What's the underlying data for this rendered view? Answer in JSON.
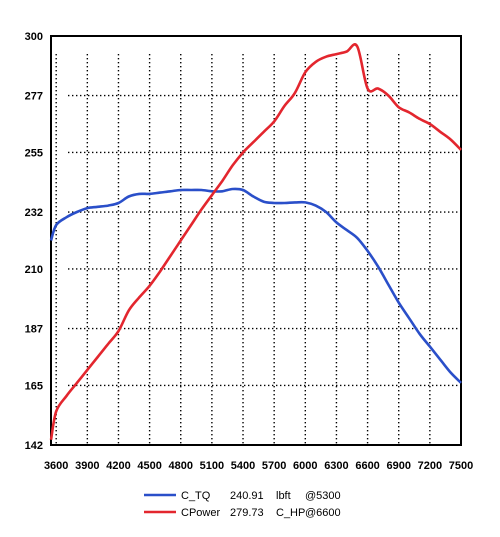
{
  "chart_data": {
    "type": "line",
    "title": "",
    "xlabel": "",
    "ylabel": "",
    "xlim": [
      3550,
      7500
    ],
    "ylim": [
      142,
      300
    ],
    "xticks": [
      3600,
      3900,
      4200,
      4500,
      4800,
      5100,
      5400,
      5700,
      6000,
      6300,
      6600,
      6900,
      7200,
      7500
    ],
    "yticks": [
      142,
      165,
      187,
      210,
      232,
      255,
      277,
      300
    ],
    "grid": true,
    "legend_placement": "bottom-center",
    "series": [
      {
        "id": "tq",
        "legend": {
          "name": "C_TQ",
          "value": "240.91",
          "unit": "lbft",
          "at": "@5300"
        },
        "color": "#2a4fc9",
        "x": [
          3550,
          3600,
          3700,
          3800,
          3900,
          4000,
          4100,
          4200,
          4300,
          4400,
          4500,
          4600,
          4700,
          4800,
          4900,
          5000,
          5100,
          5200,
          5300,
          5400,
          5500,
          5600,
          5700,
          5800,
          5900,
          6000,
          6100,
          6200,
          6300,
          6400,
          6500,
          6600,
          6700,
          6800,
          6900,
          7000,
          7100,
          7200,
          7300,
          7400,
          7500
        ],
        "values": [
          221,
          227,
          230,
          232,
          233.5,
          234,
          234.5,
          235.5,
          238,
          239,
          239,
          239.5,
          240,
          240.5,
          240.5,
          240.5,
          240,
          240,
          240.9,
          240.5,
          238,
          236,
          235.5,
          235.5,
          235.7,
          235.7,
          234.5,
          232,
          228,
          225,
          222,
          217,
          211,
          204,
          197,
          191,
          185,
          180,
          175,
          170,
          166
        ]
      },
      {
        "id": "power",
        "legend": {
          "name": "CPower",
          "value": "279.73",
          "unit": "C_HP",
          "at": "@6600"
        },
        "color": "#e3262e",
        "x": [
          3550,
          3600,
          3700,
          3800,
          3900,
          4000,
          4100,
          4200,
          4300,
          4400,
          4500,
          4600,
          4700,
          4800,
          4900,
          5000,
          5100,
          5200,
          5300,
          5400,
          5500,
          5600,
          5700,
          5800,
          5900,
          6000,
          6100,
          6200,
          6300,
          6400,
          6500,
          6600,
          6700,
          6800,
          6900,
          7000,
          7100,
          7200,
          7300,
          7400,
          7500
        ],
        "values": [
          144,
          155,
          161,
          166,
          171,
          176,
          181,
          186,
          194,
          199,
          203.5,
          209,
          215,
          221,
          227,
          233,
          238.5,
          244,
          250,
          255,
          259,
          263,
          267,
          273,
          278,
          286,
          290,
          292,
          293,
          294,
          296,
          279.7,
          279.7,
          277,
          272.5,
          270.5,
          268,
          266,
          263,
          260,
          256
        ]
      }
    ]
  }
}
